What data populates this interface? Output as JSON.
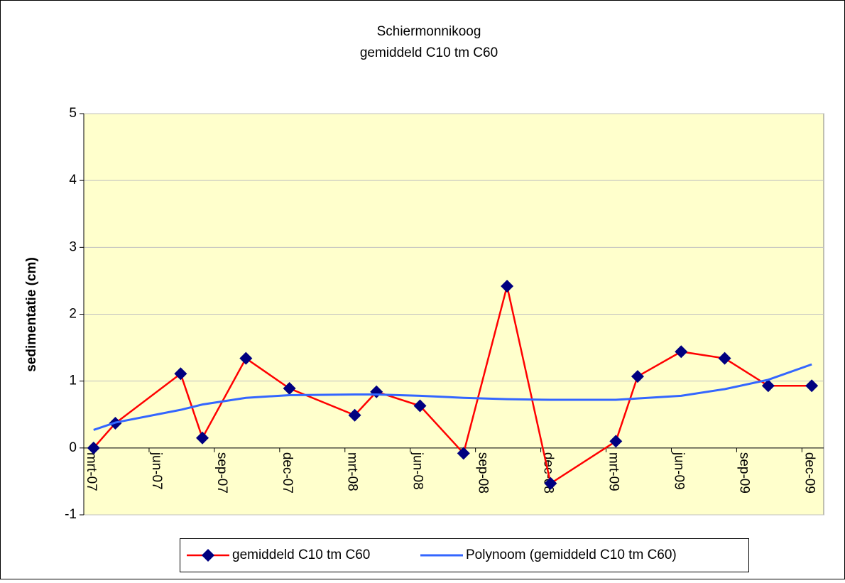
{
  "chart_data": {
    "type": "line",
    "title": [
      "Schiermonnikoog",
      "gemiddeld C10 tm C60"
    ],
    "y_label": "sedimentatie (cm)",
    "x": [
      "2007-03",
      "2007-04",
      "2007-07",
      "2007-08",
      "2007-10",
      "2007-12",
      "2008-03",
      "2008-04",
      "2008-06",
      "2008-08",
      "2008-10",
      "2008-12",
      "2009-03",
      "2009-04",
      "2009-06",
      "2009-08",
      "2009-10",
      "2009-12"
    ],
    "series": [
      {
        "name": "gemiddeld C10 tm C60",
        "color": "#ff0000",
        "marker_color": "#000080",
        "marker": "diamond",
        "values": [
          0,
          0.37,
          1.11,
          0.15,
          1.34,
          0.89,
          0.49,
          0.84,
          0.63,
          -0.08,
          2.42,
          -0.53,
          0.1,
          1.07,
          1.44,
          1.34,
          0.93,
          0.93
        ]
      },
      {
        "name": "Polynoom (gemiddeld C10 tm C60)",
        "color": "#3366ff",
        "values": [
          0.27,
          0.38,
          0.57,
          0.65,
          0.75,
          0.79,
          0.8,
          0.8,
          0.78,
          0.75,
          0.73,
          0.72,
          0.72,
          0.74,
          0.78,
          0.88,
          1.02,
          1.25
        ]
      }
    ],
    "xlim": [
      "2007-03",
      "2009-12"
    ],
    "xticks": [
      {
        "value": "2007-03",
        "label": "mrt-07"
      },
      {
        "value": "2007-06",
        "label": "jun-07"
      },
      {
        "value": "2007-09",
        "label": "sep-07"
      },
      {
        "value": "2007-12",
        "label": "dec-07"
      },
      {
        "value": "2008-03",
        "label": "mrt-08"
      },
      {
        "value": "2008-06",
        "label": "jun-08"
      },
      {
        "value": "2008-09",
        "label": "sep-08"
      },
      {
        "value": "2008-12",
        "label": "dec-08"
      },
      {
        "value": "2009-03",
        "label": "mrt-09"
      },
      {
        "value": "2009-06",
        "label": "jun-09"
      },
      {
        "value": "2009-09",
        "label": "sep-09"
      },
      {
        "value": "2009-12",
        "label": "dec-09"
      }
    ],
    "ylim": [
      -1,
      5
    ],
    "yticks": [
      -1,
      0,
      1,
      2,
      3,
      4,
      5
    ],
    "grid": true,
    "plot_background": "#ffffcc"
  }
}
